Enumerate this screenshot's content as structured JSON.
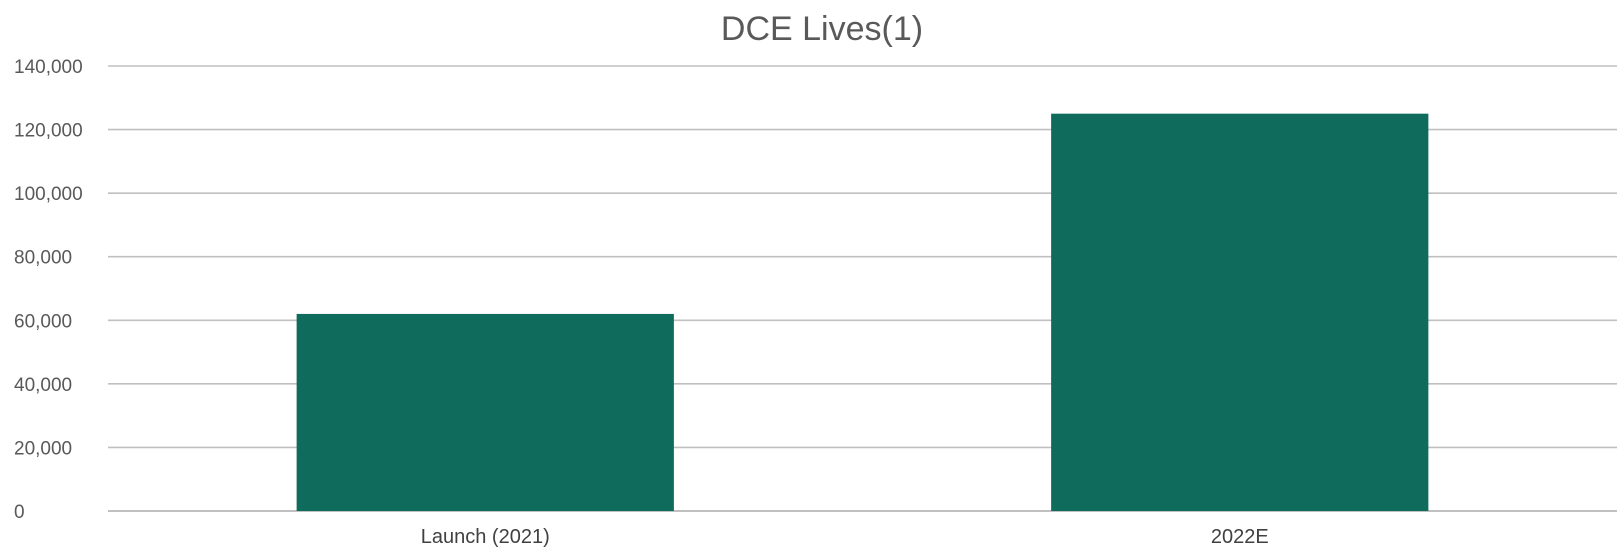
{
  "chart_data": {
    "type": "bar",
    "title": "DCE Lives(1)",
    "xlabel": "",
    "ylabel": "",
    "categories": [
      "Launch (2021)",
      "2022E"
    ],
    "values": [
      62000,
      125000
    ],
    "ylim": [
      0,
      140000
    ],
    "yticks": [
      "0",
      "20,000",
      "40,000",
      "60,000",
      "80,000",
      "100,000",
      "120,000",
      "140,000"
    ],
    "grid": true,
    "legend": "none",
    "bar_color": "#0f6b5c",
    "grid_color": "#c0c0c0"
  }
}
